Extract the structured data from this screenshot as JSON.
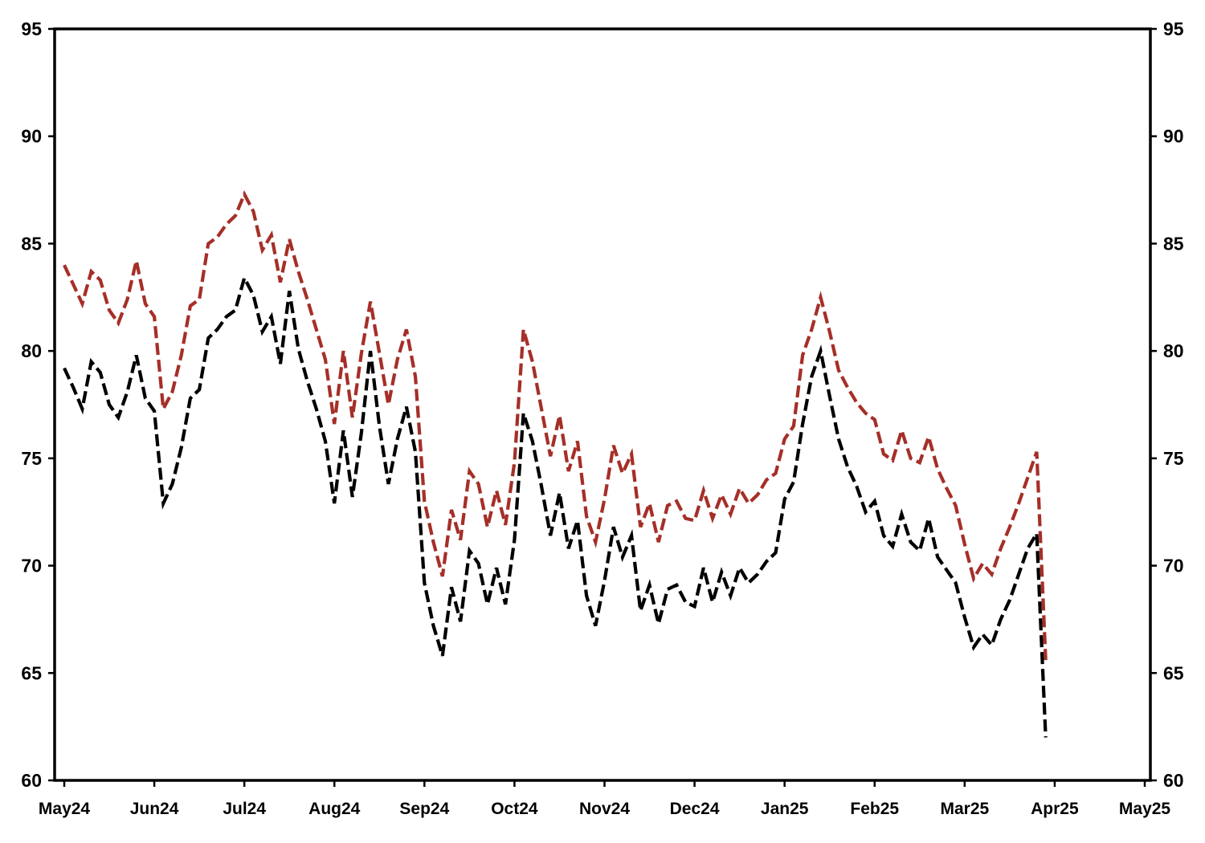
{
  "chart_data": {
    "type": "line",
    "title": "",
    "xlabel": "",
    "ylabel": "",
    "grid": false,
    "legend": "none",
    "axis_labels_both_sides": true,
    "ylim": [
      60,
      95
    ],
    "y_ticks": [
      60,
      65,
      70,
      75,
      80,
      85,
      90,
      95
    ],
    "x_tick_labels": [
      "May24",
      "Jun24",
      "Jul24",
      "Aug24",
      "Sep24",
      "Oct24",
      "Nov24",
      "Dec24",
      "Jan25",
      "Feb25",
      "Mar25",
      "Apr25",
      "May25"
    ],
    "points_per_month": 10,
    "line_style": "dashed",
    "frame_color": "#000000",
    "series": [
      {
        "name": "upper-red-series",
        "color": "#A52F28",
        "values": [
          84.0,
          83.1,
          82.2,
          83.7,
          83.3,
          81.9,
          81.3,
          82.4,
          84.2,
          82.2,
          81.6,
          77.3,
          78.1,
          79.8,
          82.1,
          82.4,
          85.0,
          85.3,
          85.9,
          86.3,
          87.3,
          86.5,
          84.7,
          85.4,
          83.2,
          85.2,
          83.7,
          82.4,
          81.0,
          79.6,
          76.6,
          80.0,
          76.9,
          79.9,
          82.3,
          79.9,
          77.5,
          79.6,
          81.0,
          78.8,
          73.0,
          71.1,
          69.5,
          72.6,
          71.2,
          74.4,
          73.8,
          71.8,
          73.5,
          71.9,
          74.8,
          81.0,
          79.5,
          77.3,
          75.1,
          77.0,
          74.4,
          75.8,
          72.3,
          71.1,
          73.1,
          75.6,
          74.3,
          75.2,
          71.8,
          72.9,
          71.1,
          72.8,
          73.0,
          72.2,
          72.1,
          73.5,
          72.2,
          73.3,
          72.4,
          73.6,
          72.9,
          73.3,
          74.0,
          74.3,
          75.9,
          76.5,
          79.8,
          81.0,
          82.5,
          80.9,
          79.1,
          78.3,
          77.6,
          77.1,
          76.8,
          75.2,
          74.9,
          76.3,
          75.0,
          74.8,
          76.0,
          74.5,
          73.6,
          72.8,
          71.0,
          69.4,
          70.1,
          69.6,
          70.8,
          71.8,
          72.9,
          74.1,
          75.3,
          65.6
        ]
      },
      {
        "name": "lower-black-series",
        "color": "#000000",
        "values": [
          79.2,
          78.3,
          77.3,
          79.5,
          79.0,
          77.5,
          76.9,
          78.1,
          79.8,
          77.8,
          77.2,
          72.9,
          73.8,
          75.5,
          77.8,
          78.2,
          80.6,
          81.0,
          81.6,
          81.9,
          83.4,
          82.6,
          80.9,
          81.6,
          79.4,
          82.8,
          80.1,
          78.6,
          77.3,
          75.8,
          72.9,
          76.3,
          73.2,
          76.2,
          80.0,
          76.5,
          73.8,
          75.9,
          77.4,
          75.3,
          69.2,
          67.2,
          65.8,
          69.0,
          67.4,
          70.7,
          70.1,
          68.2,
          69.9,
          68.2,
          71.2,
          77.1,
          75.8,
          73.7,
          71.4,
          73.4,
          70.8,
          72.1,
          68.6,
          67.2,
          69.3,
          71.8,
          70.4,
          71.4,
          67.9,
          69.1,
          67.3,
          68.9,
          69.1,
          68.3,
          68.1,
          69.9,
          68.3,
          69.7,
          68.6,
          69.9,
          69.2,
          69.6,
          70.2,
          70.6,
          73.1,
          73.9,
          76.6,
          78.8,
          80.0,
          77.9,
          75.9,
          74.6,
          73.7,
          72.5,
          73.0,
          71.4,
          70.9,
          72.4,
          71.1,
          70.7,
          72.2,
          70.4,
          69.8,
          69.2,
          67.6,
          66.2,
          66.8,
          66.3,
          67.5,
          68.4,
          69.6,
          70.8,
          71.5,
          62.0
        ]
      }
    ]
  }
}
